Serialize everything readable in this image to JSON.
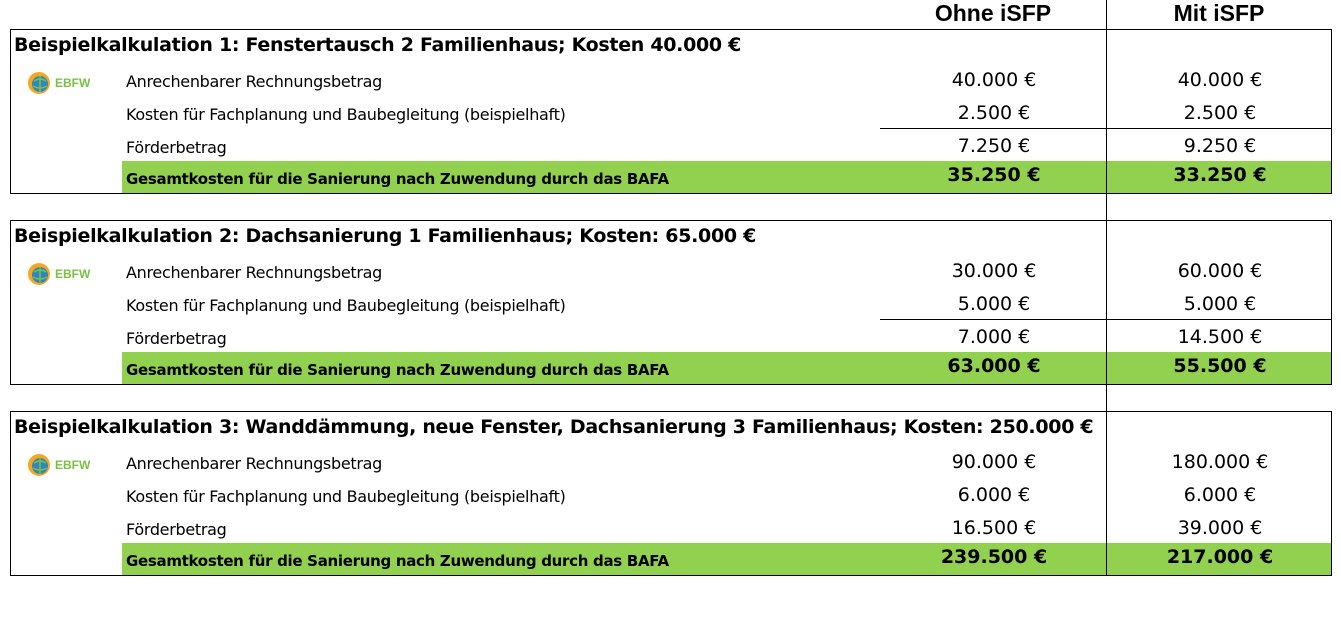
{
  "header": {
    "col_ohne": "Ohne iSFP",
    "col_mit": "Mit iSFP"
  },
  "logo": {
    "text": "EBFW"
  },
  "blocks": [
    {
      "title": "Beispielkalkulation 1: Fenstertausch 2 Familienhaus; Kosten 40.000 €",
      "rows": [
        {
          "label": "Anrechenbarer Rechnungsbetrag",
          "ohne": "40.000 €",
          "mit": "40.000 €"
        },
        {
          "label": "Kosten für Fachplanung und Baubegleitung (beispielhaft)",
          "ohne": "2.500 €",
          "mit": "2.500 €"
        },
        {
          "label": "Förderbetrag",
          "ohne": "7.250 €",
          "mit": "9.250 €"
        }
      ],
      "total": {
        "label": "Gesamtkosten für die Sanierung nach Zuwendung durch das BAFA",
        "ohne": "35.250 €",
        "mit": "33.250 €"
      }
    },
    {
      "title": "Beispielkalkulation 2: Dachsanierung 1 Familienhaus; Kosten: 65.000 €",
      "rows": [
        {
          "label": "Anrechenbarer Rechnungsbetrag",
          "ohne": "30.000 €",
          "mit": "60.000 €"
        },
        {
          "label": "Kosten für Fachplanung und Baubegleitung (beispielhaft)",
          "ohne": "5.000 €",
          "mit": "5.000 €"
        },
        {
          "label": "Förderbetrag",
          "ohne": "7.000 €",
          "mit": "14.500 €"
        }
      ],
      "total": {
        "label": "Gesamtkosten für die Sanierung nach Zuwendung durch das BAFA",
        "ohne": "63.000 €",
        "mit": "55.500 €"
      }
    },
    {
      "title": "Beispielkalkulation 3: Wanddämmung, neue Fenster, Dachsanierung 3 Familienhaus; Kosten: 250.000 €",
      "rows": [
        {
          "label": "Anrechenbarer Rechnungsbetrag",
          "ohne": "90.000 €",
          "mit": "180.000 €"
        },
        {
          "label": "Kosten für Fachplanung und Baubegleitung (beispielhaft)",
          "ohne": "6.000 €",
          "mit": "6.000 €"
        },
        {
          "label": "Förderbetrag",
          "ohne": "16.500 €",
          "mit": "39.000 €"
        }
      ],
      "total": {
        "label": "Gesamtkosten für die Sanierung nach Zuwendung durch das BAFA",
        "ohne": "239.500 €",
        "mit": "217.000 €"
      }
    }
  ],
  "colors": {
    "total_band": "#92d050",
    "logo_orange": "#f5a623",
    "logo_blue": "#2e86c1",
    "logo_green": "#7ac143"
  }
}
